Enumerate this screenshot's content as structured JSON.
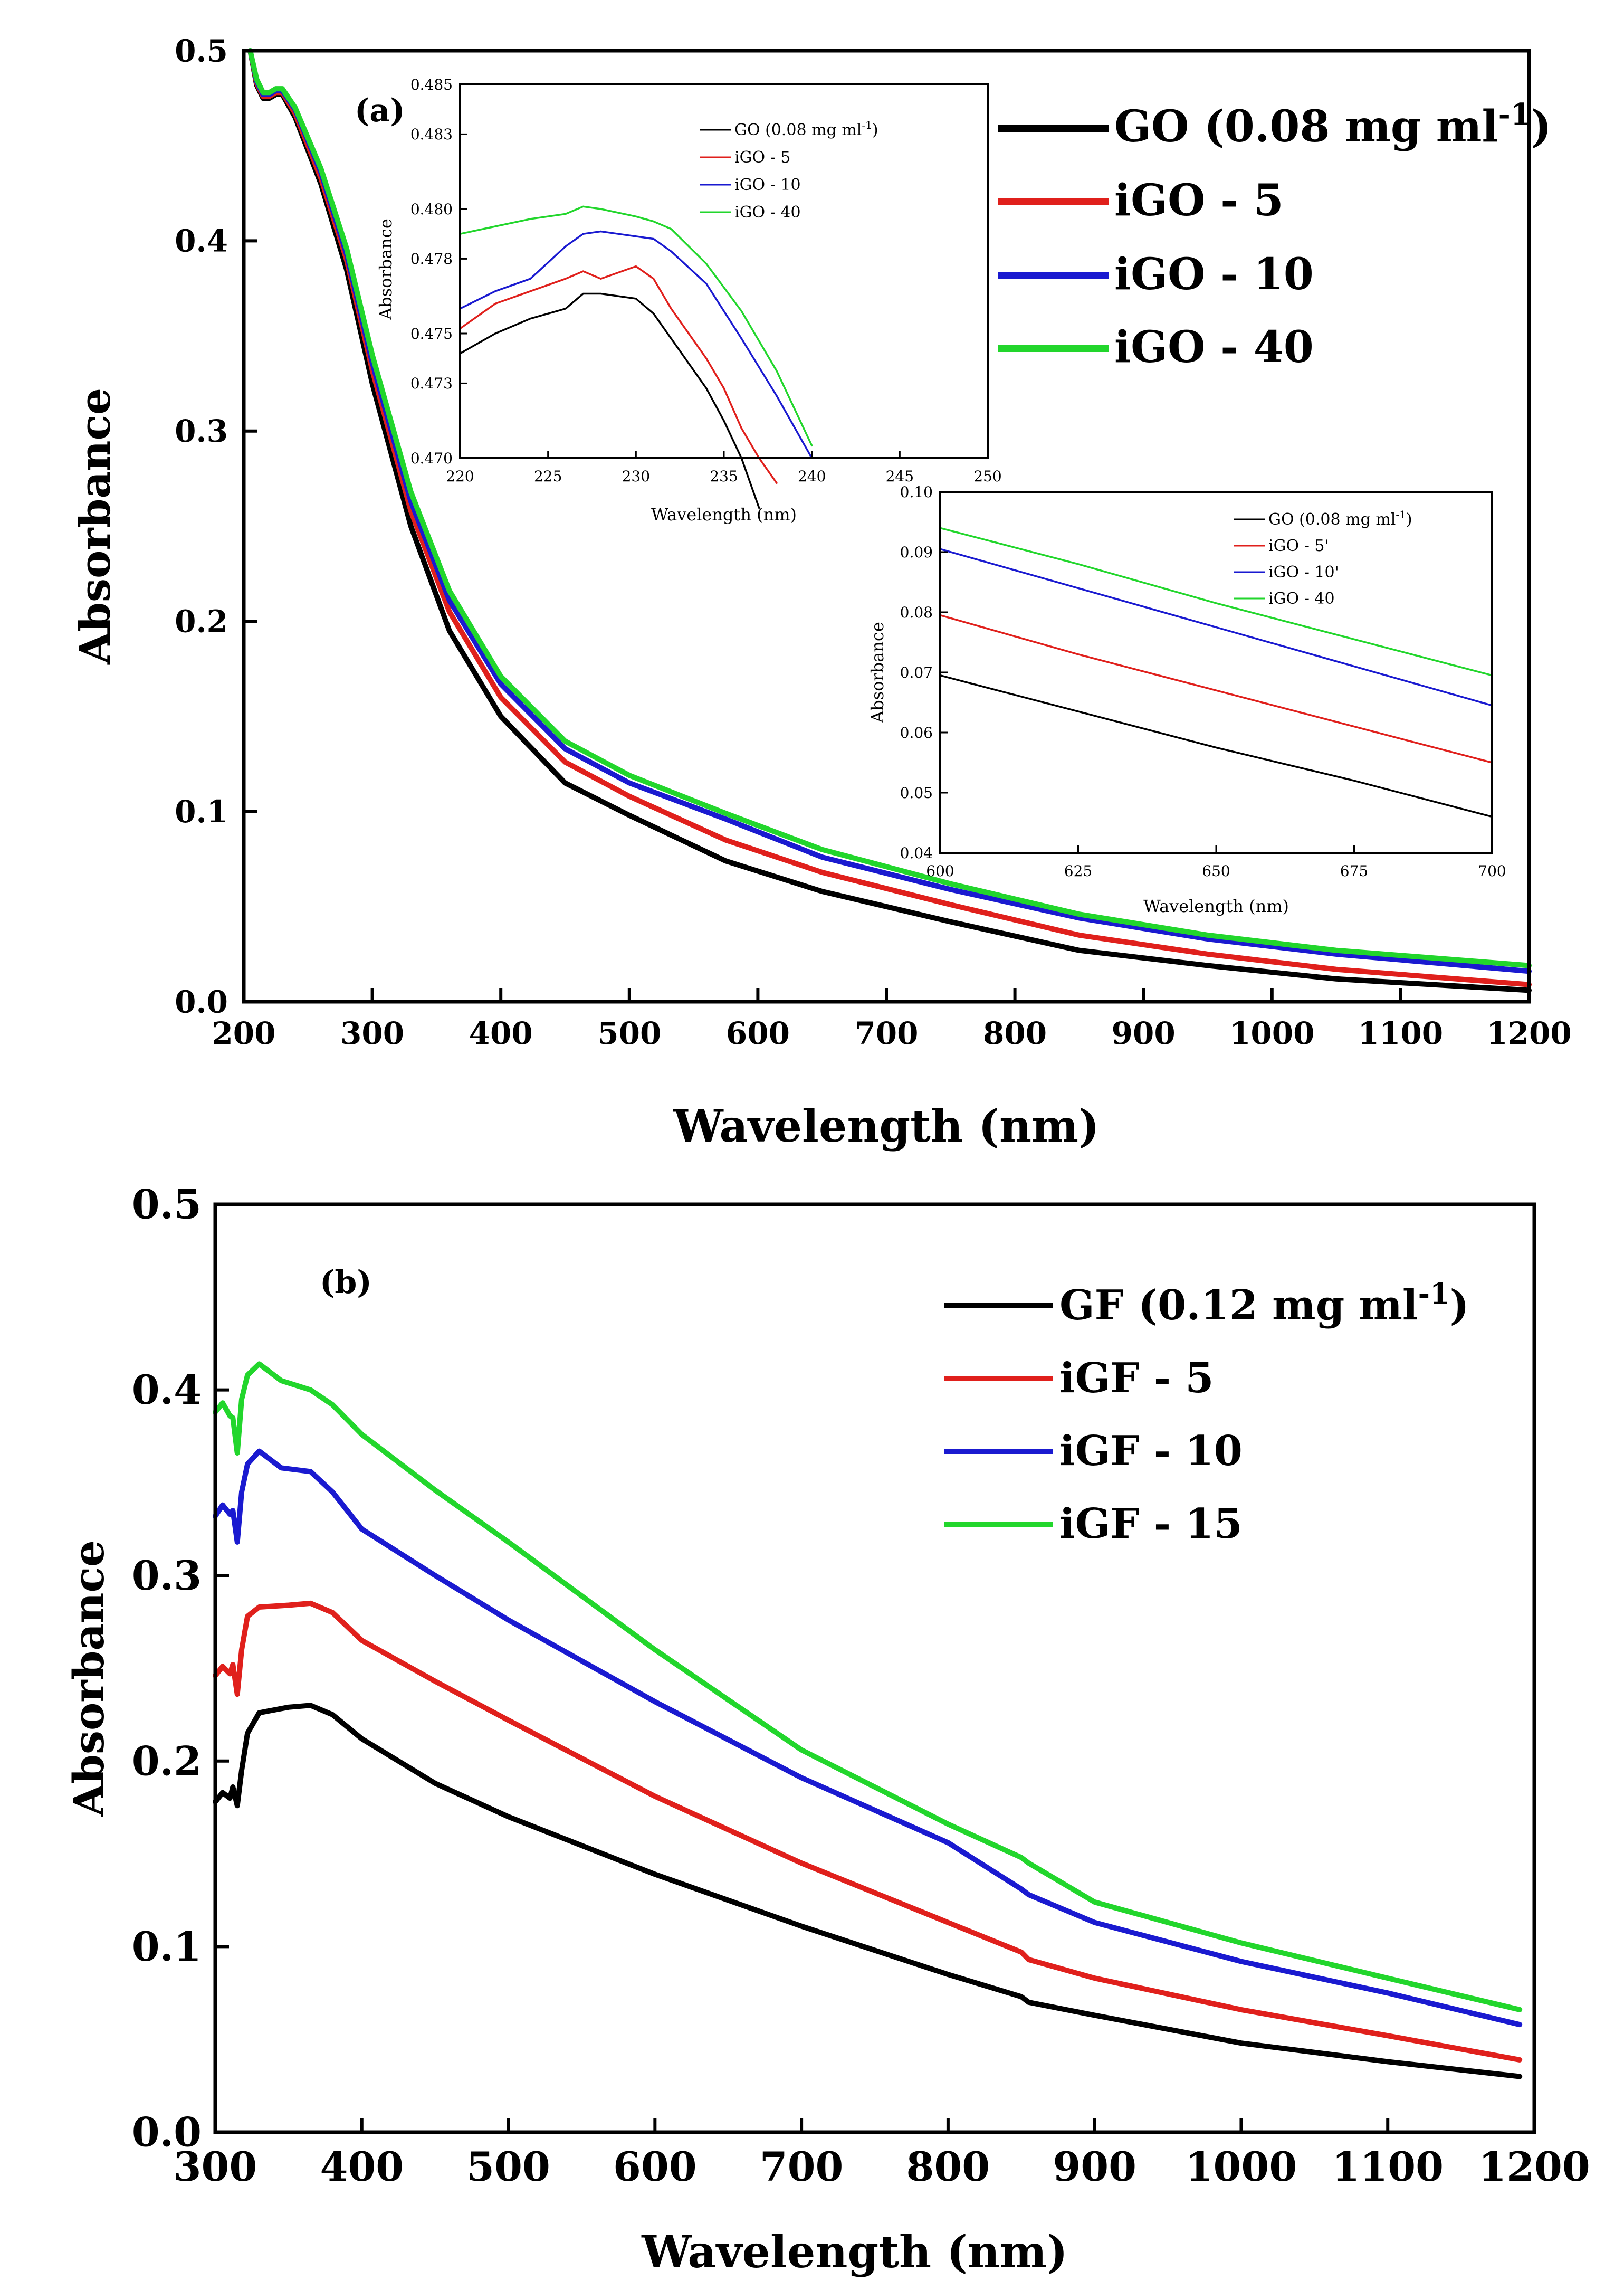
{
  "colors": {
    "black": "#000000",
    "red": "#e0201c",
    "blue": "#1a1ad0",
    "green": "#22d62c"
  },
  "chart_data": [
    {
      "id": "a",
      "type": "line",
      "panel_label": "(a)",
      "xlabel": "Wavelength (nm)",
      "ylabel": "Absorbance",
      "xlim": [
        200,
        1200
      ],
      "ylim": [
        0,
        0.5
      ],
      "xticks": [
        "200",
        "300",
        "400",
        "500",
        "600",
        "700",
        "800",
        "900",
        "1000",
        "1100",
        "1200"
      ],
      "yticks": [
        "0.0",
        "0.1",
        "0.2",
        "0.3",
        "0.4",
        "0.5"
      ],
      "legend_position": "top-right",
      "series": [
        {
          "name": "GO",
          "legend_main": "GO (0.08 mg ml",
          "legend_sup": "-1",
          "legend_close": ")",
          "color": "black",
          "x": [
            205,
            210,
            215,
            220,
            225,
            230,
            240,
            260,
            280,
            300,
            330,
            360,
            400,
            450,
            500,
            575,
            650,
            750,
            850,
            950,
            1050,
            1200
          ],
          "y": [
            0.5,
            0.482,
            0.475,
            0.475,
            0.477,
            0.477,
            0.465,
            0.43,
            0.385,
            0.325,
            0.25,
            0.195,
            0.15,
            0.115,
            0.098,
            0.074,
            0.058,
            0.042,
            0.027,
            0.019,
            0.012,
            0.006
          ]
        },
        {
          "name": "iGO - 5",
          "legend_main": "iGO - 5",
          "color": "red",
          "x": [
            205,
            210,
            215,
            220,
            225,
            230,
            240,
            260,
            280,
            300,
            330,
            360,
            400,
            450,
            500,
            575,
            650,
            750,
            850,
            950,
            1050,
            1200
          ],
          "y": [
            0.5,
            0.483,
            0.476,
            0.476,
            0.478,
            0.478,
            0.467,
            0.433,
            0.39,
            0.332,
            0.258,
            0.205,
            0.16,
            0.126,
            0.108,
            0.085,
            0.068,
            0.051,
            0.035,
            0.025,
            0.017,
            0.009
          ]
        },
        {
          "name": "iGO - 10",
          "legend_main": "iGO - 10",
          "color": "blue",
          "x": [
            205,
            210,
            215,
            220,
            225,
            230,
            240,
            260,
            280,
            300,
            330,
            360,
            400,
            450,
            500,
            575,
            650,
            750,
            850,
            950,
            1050,
            1200
          ],
          "y": [
            0.5,
            0.484,
            0.477,
            0.477,
            0.479,
            0.479,
            0.469,
            0.436,
            0.393,
            0.336,
            0.263,
            0.211,
            0.167,
            0.133,
            0.115,
            0.096,
            0.076,
            0.059,
            0.044,
            0.033,
            0.025,
            0.016
          ]
        },
        {
          "name": "iGO - 40",
          "legend_main": "iGO - 40",
          "color": "green",
          "x": [
            205,
            210,
            215,
            220,
            225,
            230,
            240,
            260,
            280,
            300,
            330,
            360,
            400,
            450,
            500,
            575,
            650,
            750,
            850,
            950,
            1050,
            1200
          ],
          "y": [
            0.5,
            0.485,
            0.478,
            0.478,
            0.48,
            0.48,
            0.47,
            0.438,
            0.396,
            0.34,
            0.268,
            0.216,
            0.171,
            0.137,
            0.119,
            0.099,
            0.08,
            0.062,
            0.046,
            0.035,
            0.027,
            0.019
          ]
        }
      ],
      "insets": [
        {
          "id": "a-inset-1",
          "xlabel": "Wavelength (nm)",
          "ylabel": "Absorbance",
          "xlim": [
            220,
            250
          ],
          "ylim": [
            0.47,
            0.485
          ],
          "xticks": [
            "220",
            "225",
            "230",
            "235",
            "240",
            "245",
            "250"
          ],
          "yticks": [
            "0.470",
            "0.473",
            "0.475",
            "0.478",
            "0.480",
            "0.483",
            "0.485"
          ],
          "series": [
            {
              "name": "GO (0.08 mg ml-1)",
              "legend_main": "GO (0.08 mg ml",
              "legend_sup": "-1",
              "legend_close": ")",
              "color": "black",
              "x": [
                220,
                222,
                224,
                226,
                227,
                228,
                230,
                231,
                232,
                234,
                235,
                236,
                237
              ],
              "y": [
                0.4742,
                0.475,
                0.4756,
                0.476,
                0.4766,
                0.4766,
                0.4764,
                0.4758,
                0.4748,
                0.4728,
                0.4715,
                0.47,
                0.468
              ]
            },
            {
              "name": "iGO - 5",
              "legend_main": "iGO - 5",
              "color": "red",
              "x": [
                220,
                222,
                224,
                226,
                227,
                228,
                230,
                231,
                232,
                234,
                235,
                236,
                237,
                238
              ],
              "y": [
                0.4752,
                0.4762,
                0.4767,
                0.4772,
                0.4775,
                0.4772,
                0.4777,
                0.4772,
                0.476,
                0.474,
                0.4728,
                0.4712,
                0.47,
                0.469
              ]
            },
            {
              "name": "iGO - 10",
              "legend_main": "iGO - 10",
              "color": "blue",
              "x": [
                220,
                222,
                224,
                226,
                227,
                228,
                229,
                230,
                231,
                232,
                234,
                236,
                238,
                240
              ],
              "y": [
                0.476,
                0.4767,
                0.4772,
                0.4785,
                0.479,
                0.4791,
                0.479,
                0.4789,
                0.4788,
                0.4783,
                0.477,
                0.4748,
                0.4725,
                0.47
              ]
            },
            {
              "name": "iGO - 40",
              "legend_main": "iGO - 40",
              "color": "green",
              "x": [
                220,
                222,
                224,
                226,
                227,
                228,
                230,
                231,
                232,
                234,
                236,
                238,
                240
              ],
              "y": [
                0.479,
                0.4793,
                0.4796,
                0.4798,
                0.4801,
                0.48,
                0.4797,
                0.4795,
                0.4792,
                0.4778,
                0.4759,
                0.4735,
                0.4705
              ]
            }
          ]
        },
        {
          "id": "a-inset-2",
          "xlabel": "Wavelength (nm)",
          "ylabel": "Absorbance",
          "xlim": [
            600,
            700
          ],
          "ylim": [
            0.04,
            0.1
          ],
          "xticks": [
            "600",
            "625",
            "650",
            "675",
            "700"
          ],
          "yticks": [
            "0.04",
            "0.05",
            "0.06",
            "0.07",
            "0.08",
            "0.09",
            "0.10"
          ],
          "series": [
            {
              "name": "GO (0.08 mg ml-1)",
              "legend_main": "GO (0.08 mg ml",
              "legend_sup": "-1",
              "legend_close": ")",
              "color": "black",
              "x": [
                600,
                625,
                650,
                675,
                700
              ],
              "y": [
                0.0695,
                0.0635,
                0.0575,
                0.052,
                0.046
              ]
            },
            {
              "name": "iGO - 5'",
              "legend_main": "iGO - 5'",
              "color": "red",
              "x": [
                600,
                625,
                650,
                675,
                700
              ],
              "y": [
                0.0795,
                0.073,
                0.067,
                0.061,
                0.055
              ]
            },
            {
              "name": "iGO - 10'",
              "legend_main": "iGO - 10'",
              "color": "blue",
              "x": [
                600,
                625,
                650,
                675,
                700
              ],
              "y": [
                0.0905,
                0.084,
                0.0775,
                0.071,
                0.0645
              ]
            },
            {
              "name": "iGO - 40",
              "legend_main": "iGO - 40",
              "color": "green",
              "x": [
                600,
                625,
                650,
                675,
                700
              ],
              "y": [
                0.094,
                0.088,
                0.0815,
                0.0755,
                0.0695
              ]
            }
          ]
        }
      ]
    },
    {
      "id": "b",
      "type": "line",
      "panel_label": "(b)",
      "xlabel": "Wavelength (nm)",
      "ylabel": "Absorbance",
      "xlim": [
        300,
        1200
      ],
      "ylim": [
        0,
        0.5
      ],
      "xticks": [
        "300",
        "400",
        "500",
        "600",
        "700",
        "800",
        "900",
        "1000",
        "1100",
        "1200"
      ],
      "yticks": [
        "0.0",
        "0.1",
        "0.2",
        "0.3",
        "0.4",
        "0.5"
      ],
      "legend_position": "top-right",
      "series": [
        {
          "name": "GF",
          "legend_main": "GF  (0.12 mg ml",
          "legend_sup": "-1",
          "legend_close": ")",
          "color": "black",
          "x": [
            300,
            305,
            310,
            312,
            315,
            318,
            322,
            330,
            350,
            365,
            380,
            400,
            450,
            500,
            600,
            700,
            800,
            850,
            855,
            900,
            1000,
            1100,
            1190
          ],
          "y": [
            0.178,
            0.183,
            0.18,
            0.186,
            0.176,
            0.195,
            0.215,
            0.226,
            0.229,
            0.23,
            0.225,
            0.212,
            0.188,
            0.17,
            0.139,
            0.111,
            0.085,
            0.073,
            0.07,
            0.063,
            0.048,
            0.038,
            0.03
          ]
        },
        {
          "name": "iGF - 5",
          "legend_main": "iGF - 5",
          "color": "red",
          "x": [
            300,
            305,
            310,
            312,
            315,
            318,
            322,
            330,
            350,
            365,
            380,
            400,
            450,
            500,
            600,
            700,
            800,
            850,
            855,
            900,
            1000,
            1100,
            1190
          ],
          "y": [
            0.246,
            0.251,
            0.247,
            0.252,
            0.236,
            0.26,
            0.278,
            0.283,
            0.284,
            0.285,
            0.28,
            0.265,
            0.243,
            0.222,
            0.181,
            0.145,
            0.113,
            0.097,
            0.093,
            0.083,
            0.066,
            0.052,
            0.039
          ]
        },
        {
          "name": "iGF - 10",
          "legend_main": "iGF - 10",
          "color": "blue",
          "x": [
            300,
            305,
            310,
            312,
            315,
            318,
            322,
            330,
            345,
            365,
            380,
            400,
            450,
            500,
            600,
            700,
            800,
            850,
            855,
            900,
            1000,
            1100,
            1190
          ],
          "y": [
            0.332,
            0.338,
            0.333,
            0.335,
            0.318,
            0.345,
            0.36,
            0.367,
            0.358,
            0.356,
            0.345,
            0.325,
            0.3,
            0.276,
            0.232,
            0.191,
            0.156,
            0.131,
            0.128,
            0.113,
            0.092,
            0.075,
            0.058
          ]
        },
        {
          "name": "iGF - 15",
          "legend_main": "iGF - 15",
          "color": "green",
          "x": [
            300,
            305,
            310,
            312,
            315,
            318,
            322,
            330,
            345,
            365,
            380,
            400,
            450,
            500,
            600,
            700,
            800,
            850,
            855,
            900,
            1000,
            1100,
            1190
          ],
          "y": [
            0.388,
            0.393,
            0.386,
            0.385,
            0.366,
            0.395,
            0.408,
            0.414,
            0.405,
            0.4,
            0.392,
            0.376,
            0.346,
            0.318,
            0.26,
            0.206,
            0.166,
            0.148,
            0.145,
            0.124,
            0.102,
            0.083,
            0.066
          ]
        }
      ]
    }
  ]
}
